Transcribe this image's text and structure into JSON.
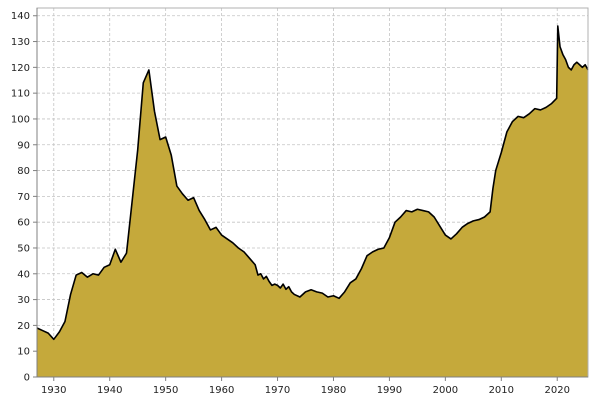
{
  "chart_data": {
    "type": "area",
    "title": "",
    "xlabel": "",
    "ylabel": "",
    "xlim": [
      1927,
      2025.5
    ],
    "ylim": [
      0,
      143
    ],
    "grid": true,
    "legend": "none",
    "colors": {
      "fill": "#c5a93b",
      "line": "#000000",
      "grid": "#c4c4c4",
      "axis": "#808080"
    },
    "x_ticks": [
      1930,
      1940,
      1950,
      1960,
      1970,
      1980,
      1990,
      2000,
      2010,
      2020
    ],
    "x_tick_labels": [
      "1930",
      "1940",
      "1950",
      "1960",
      "1970",
      "1980",
      "1990",
      "2000",
      "2010",
      "2020"
    ],
    "y_ticks": [
      0,
      10,
      20,
      30,
      40,
      50,
      60,
      70,
      80,
      90,
      100,
      110,
      120,
      130,
      140
    ],
    "y_tick_labels": [
      "0",
      "10",
      "20",
      "30",
      "40",
      "50",
      "60",
      "70",
      "80",
      "90",
      "100",
      "110",
      "120",
      "130",
      "140"
    ],
    "series": [
      {
        "x": [
          1927,
          1928,
          1929,
          1930,
          1931,
          1932,
          1933,
          1934,
          1935,
          1936,
          1937,
          1938,
          1939,
          1940,
          1941,
          1942,
          1943,
          1944,
          1945,
          1946,
          1947,
          1948,
          1949,
          1950,
          1951,
          1952,
          1953,
          1954,
          1955,
          1956,
          1957,
          1958,
          1959,
          1960,
          1961,
          1962,
          1963,
          1964,
          1965,
          1966,
          1966.5,
          1967,
          1967.5,
          1968,
          1968.5,
          1969,
          1969.5,
          1970,
          1970.5,
          1971,
          1971.5,
          1972,
          1972.5,
          1973,
          1974,
          1975,
          1976,
          1977,
          1978,
          1979,
          1980,
          1981,
          1982,
          1983,
          1984,
          1985,
          1986,
          1987,
          1988,
          1989,
          1990,
          1991,
          1992,
          1993,
          1994,
          1995,
          1996,
          1997,
          1998,
          1999,
          2000,
          2001,
          2002,
          2003,
          2004,
          2005,
          2006,
          2007,
          2008,
          2008.5,
          2009,
          2010,
          2011,
          2012,
          2013,
          2014,
          2015,
          2016,
          2017,
          2018,
          2019,
          2019.9,
          2020.1,
          2020.5,
          2021,
          2021.5,
          2022,
          2022.5,
          2023,
          2023.5,
          2024,
          2024.5,
          2025,
          2025.5
        ],
        "values": [
          19,
          18,
          17,
          14.6,
          17.5,
          21.5,
          32,
          39.5,
          40.5,
          38.7,
          40,
          39.5,
          42.5,
          43.5,
          49.5,
          44.5,
          48,
          68,
          88,
          114,
          119,
          103,
          92,
          93,
          86,
          74,
          71,
          68.5,
          69.5,
          64.5,
          61,
          57,
          58,
          55,
          53.5,
          52,
          50,
          48.5,
          46,
          43.5,
          39.5,
          40,
          38,
          39,
          37,
          35.5,
          36,
          35.5,
          34.5,
          36,
          34,
          35,
          33,
          32,
          31,
          33,
          33.8,
          33,
          32.5,
          31,
          31.5,
          30.5,
          33,
          36.5,
          38,
          42,
          47,
          48.5,
          49.5,
          50,
          54,
          60,
          62,
          64.5,
          64,
          65,
          64.5,
          64,
          62,
          58.5,
          55,
          53.5,
          55.5,
          58,
          59.5,
          60.5,
          61,
          62,
          64,
          73,
          80,
          87,
          95,
          99,
          101,
          100.5,
          102,
          104,
          103.5,
          104.5,
          106,
          108,
          136,
          128,
          125,
          123,
          120,
          119,
          121,
          122,
          121,
          120,
          121,
          119
        ]
      }
    ]
  }
}
